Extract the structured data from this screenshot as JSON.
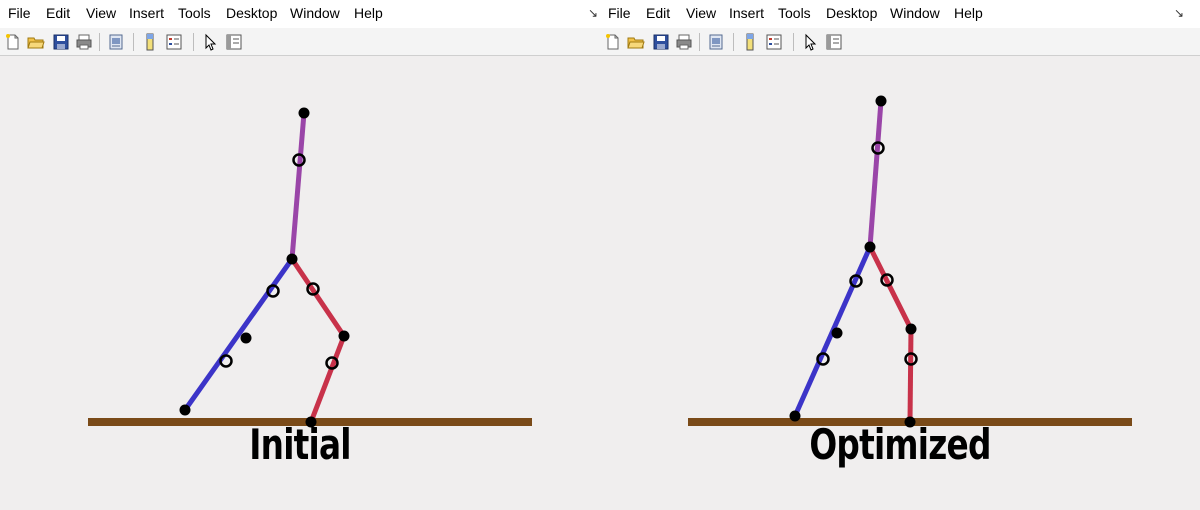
{
  "menus": [
    "File",
    "Edit",
    "View",
    "Insert",
    "Tools",
    "Desktop",
    "Window",
    "Help"
  ],
  "toolbar_icons": [
    "new-file-icon",
    "open-folder-icon",
    "save-icon",
    "print-icon",
    "print-preview-icon",
    "colorbar-icon",
    "legend-icon",
    "pointer-icon",
    "property-editor-icon"
  ],
  "dock_icon": "dock-arrow-icon",
  "colors": {
    "torso": "#9a45a8",
    "left_leg": "#3c34c8",
    "right_leg": "#c8324a",
    "ground": "#7a4a18",
    "joint": "#000000"
  },
  "figures": [
    {
      "name": "initial",
      "label": "Initial"
    },
    {
      "name": "optimized",
      "label": "Optimized"
    }
  ]
}
